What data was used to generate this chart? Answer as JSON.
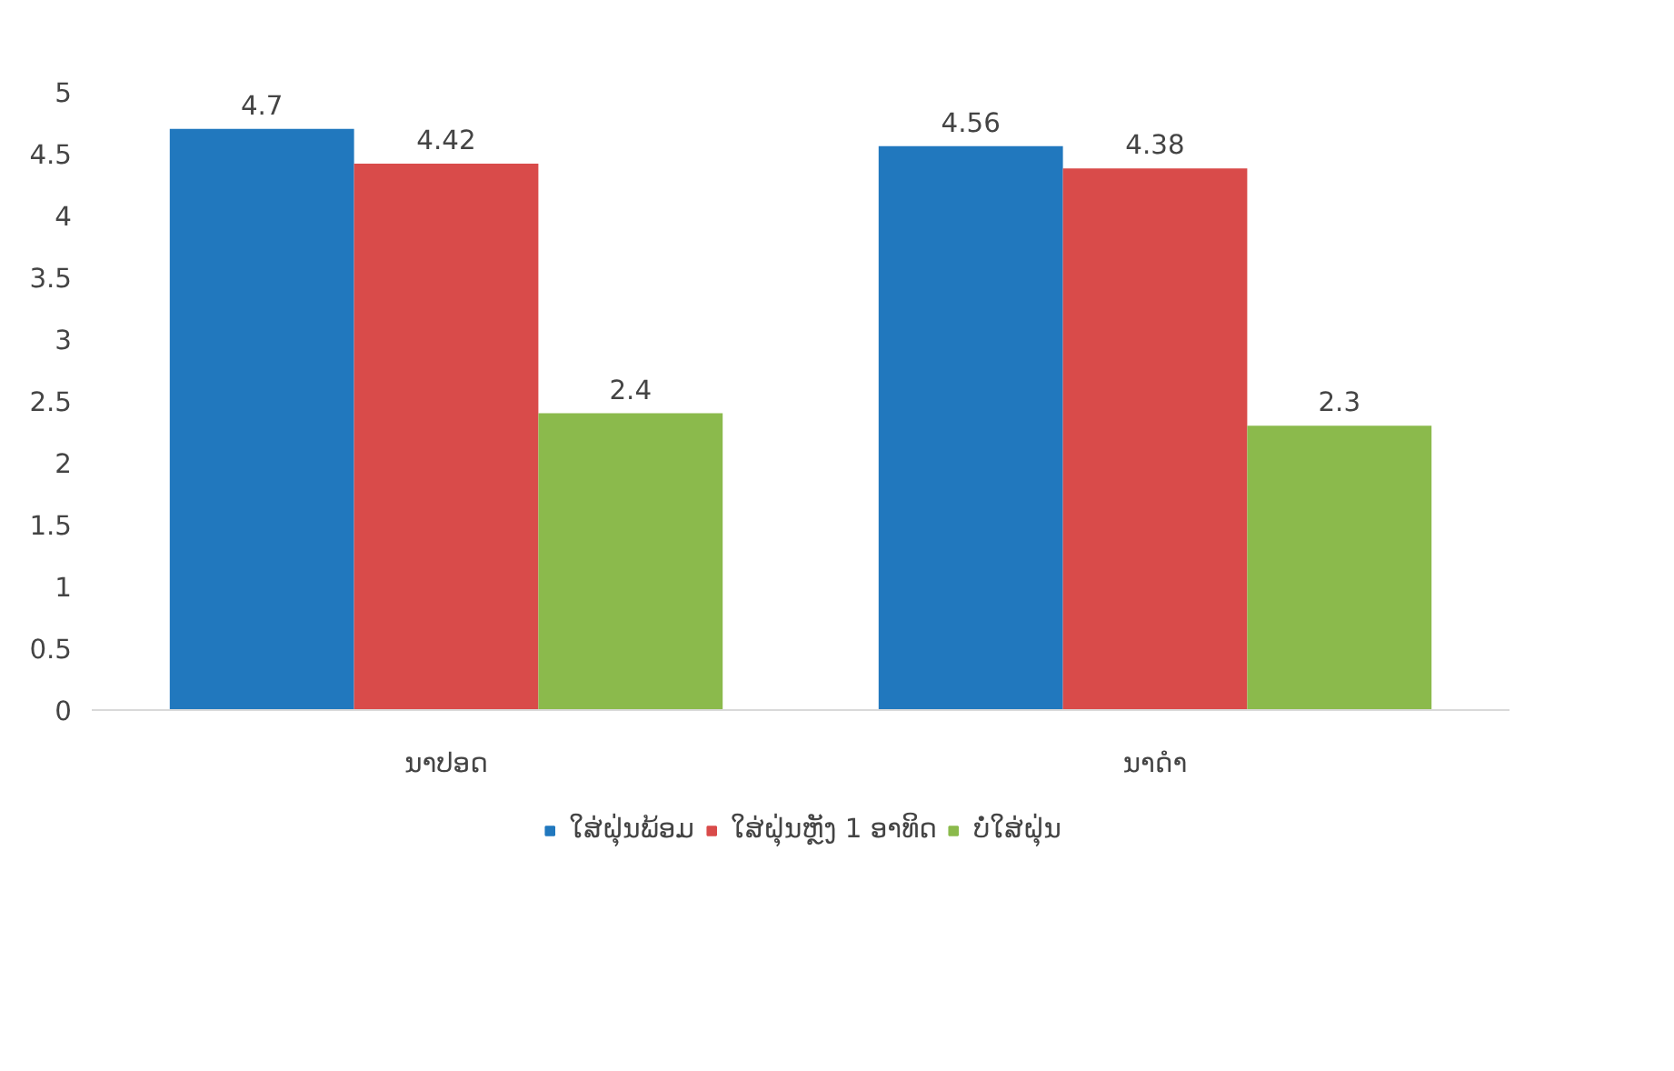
{
  "chart_data": {
    "type": "bar",
    "categories": [
      "ນາປອດ",
      "ນາດຳ"
    ],
    "series": [
      {
        "name": "ໃສ່ຝຸ່ນພ້ອມ",
        "color": "#2178be",
        "values": [
          4.7,
          4.56
        ]
      },
      {
        "name": "ໃສ່ຝຸ່ນຫຼັງ 1 ອາທິດ",
        "color": "#d94b4a",
        "values": [
          4.42,
          4.38
        ]
      },
      {
        "name": "ບໍ່ໃສ່ຝຸ່ນ",
        "color": "#8bba4c",
        "values": [
          2.4,
          2.3
        ]
      }
    ],
    "ylim": [
      0,
      5
    ],
    "yticks": [
      0,
      0.5,
      1,
      1.5,
      2,
      2.5,
      3,
      3.5,
      4,
      4.5,
      5
    ],
    "data_labels": true,
    "grid": false,
    "legend": "bottom"
  }
}
